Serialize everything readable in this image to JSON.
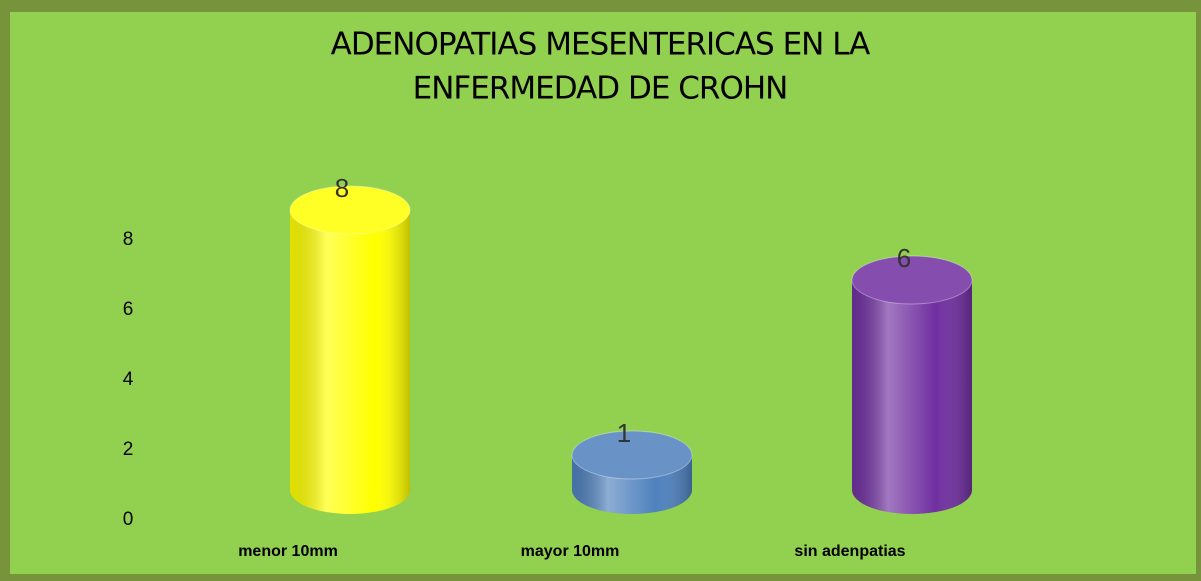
{
  "chart_data": {
    "type": "bar3d",
    "title": [
      "ADENOPATIAS MESENTERICAS EN LA",
      "ENFERMEDAD DE CROHN"
    ],
    "categories": [
      "menor 10mm",
      "mayor 10mm",
      "sin adenpatias"
    ],
    "values": [
      8,
      1,
      6
    ],
    "colors": [
      "#ffff00",
      "#4f81bd",
      "#7030a0"
    ],
    "ylim": [
      0,
      8
    ],
    "yticks": [
      0,
      2,
      4,
      6,
      8
    ],
    "grid": false
  }
}
